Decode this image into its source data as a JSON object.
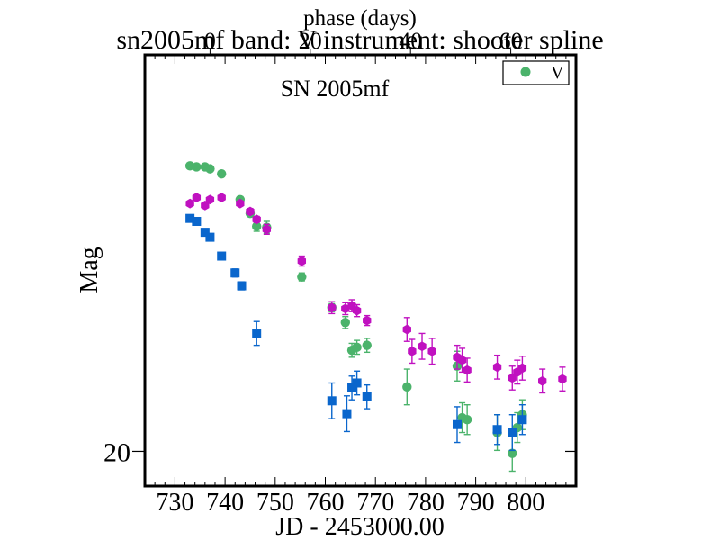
{
  "chart_data": {
    "type": "scatter",
    "title": "sn2005mf band: V instrument: shooter spline",
    "top_axis_label": "phase (days)",
    "top_tick_labels": [
      "0",
      "20",
      "40",
      "60"
    ],
    "annotation": "SN 2005mf",
    "xlabel": "JD - 2453000.00",
    "ylabel": "Mag",
    "xlim": [
      724,
      810
    ],
    "ylim": [
      20.35,
      16.0
    ],
    "x_ticks": [
      730,
      740,
      750,
      760,
      770,
      780,
      790,
      800
    ],
    "y_ticks": [
      20
    ],
    "legend": {
      "position": "top-right",
      "entries": [
        "V"
      ]
    },
    "series": [
      {
        "name": "V",
        "color": "#4bb36b",
        "marker": "circle",
        "points": [
          {
            "x": 733.0,
            "y": 17.12,
            "e": 0.02
          },
          {
            "x": 734.3,
            "y": 17.13,
            "e": 0.02
          },
          {
            "x": 736.0,
            "y": 17.13,
            "e": 0.02
          },
          {
            "x": 737.0,
            "y": 17.15,
            "e": 0.02
          },
          {
            "x": 739.3,
            "y": 17.2,
            "e": 0.02
          },
          {
            "x": 743.0,
            "y": 17.46,
            "e": 0.03
          },
          {
            "x": 745.0,
            "y": 17.6,
            "e": 0.03
          },
          {
            "x": 746.3,
            "y": 17.73,
            "e": 0.05
          },
          {
            "x": 748.3,
            "y": 17.74,
            "e": 0.06
          },
          {
            "x": 755.3,
            "y": 18.24,
            "e": 0.04
          },
          {
            "x": 761.3,
            "y": 18.55,
            "e": 0.04
          },
          {
            "x": 764.0,
            "y": 18.7,
            "e": 0.06
          },
          {
            "x": 765.3,
            "y": 18.98,
            "e": 0.07
          },
          {
            "x": 766.3,
            "y": 18.95,
            "e": 0.07
          },
          {
            "x": 768.3,
            "y": 18.93,
            "e": 0.07
          },
          {
            "x": 776.3,
            "y": 19.35,
            "e": 0.18
          },
          {
            "x": 786.3,
            "y": 19.14,
            "e": 0.15
          },
          {
            "x": 787.3,
            "y": 19.66,
            "e": 0.15
          },
          {
            "x": 788.3,
            "y": 19.68,
            "e": 0.15
          },
          {
            "x": 794.3,
            "y": 19.81,
            "e": 0.18
          },
          {
            "x": 797.3,
            "y": 20.02,
            "e": 0.18
          },
          {
            "x": 798.3,
            "y": 19.76,
            "e": 0.15
          },
          {
            "x": 799.3,
            "y": 19.63,
            "e": 0.15
          }
        ]
      },
      {
        "name": "",
        "color": "#c011c0",
        "marker": "hexagon",
        "points": [
          {
            "x": 733.0,
            "y": 17.5,
            "e": 0.02
          },
          {
            "x": 734.3,
            "y": 17.44,
            "e": 0.02
          },
          {
            "x": 736.0,
            "y": 17.52,
            "e": 0.02
          },
          {
            "x": 737.0,
            "y": 17.46,
            "e": 0.02
          },
          {
            "x": 739.3,
            "y": 17.44,
            "e": 0.02
          },
          {
            "x": 743.0,
            "y": 17.5,
            "e": 0.02
          },
          {
            "x": 745.0,
            "y": 17.58,
            "e": 0.03
          },
          {
            "x": 746.3,
            "y": 17.66,
            "e": 0.03
          },
          {
            "x": 748.3,
            "y": 17.76,
            "e": 0.05
          },
          {
            "x": 755.3,
            "y": 18.08,
            "e": 0.05
          },
          {
            "x": 761.3,
            "y": 18.55,
            "e": 0.06
          },
          {
            "x": 764.0,
            "y": 18.56,
            "e": 0.06
          },
          {
            "x": 765.3,
            "y": 18.53,
            "e": 0.06
          },
          {
            "x": 766.3,
            "y": 18.58,
            "e": 0.06
          },
          {
            "x": 768.3,
            "y": 18.68,
            "e": 0.05
          },
          {
            "x": 776.3,
            "y": 18.77,
            "e": 0.12
          },
          {
            "x": 777.3,
            "y": 18.99,
            "e": 0.12
          },
          {
            "x": 779.3,
            "y": 18.94,
            "e": 0.13
          },
          {
            "x": 781.3,
            "y": 18.99,
            "e": 0.13
          },
          {
            "x": 786.3,
            "y": 19.05,
            "e": 0.12
          },
          {
            "x": 787.3,
            "y": 19.08,
            "e": 0.12
          },
          {
            "x": 788.3,
            "y": 19.18,
            "e": 0.12
          },
          {
            "x": 794.3,
            "y": 19.15,
            "e": 0.12
          },
          {
            "x": 797.3,
            "y": 19.26,
            "e": 0.12
          },
          {
            "x": 798.3,
            "y": 19.2,
            "e": 0.12
          },
          {
            "x": 799.3,
            "y": 19.16,
            "e": 0.12
          },
          {
            "x": 803.3,
            "y": 19.29,
            "e": 0.12
          },
          {
            "x": 807.3,
            "y": 19.27,
            "e": 0.12
          }
        ]
      },
      {
        "name": "",
        "color": "#0a66cc",
        "marker": "square",
        "points": [
          {
            "x": 733.0,
            "y": 17.65,
            "e": 0.02
          },
          {
            "x": 734.3,
            "y": 17.68,
            "e": 0.02
          },
          {
            "x": 736.0,
            "y": 17.79,
            "e": 0.02
          },
          {
            "x": 737.0,
            "y": 17.84,
            "e": 0.02
          },
          {
            "x": 739.3,
            "y": 18.03,
            "e": 0.03
          },
          {
            "x": 742.0,
            "y": 18.2,
            "e": 0.04
          },
          {
            "x": 743.3,
            "y": 18.33,
            "e": 0.04
          },
          {
            "x": 746.3,
            "y": 18.81,
            "e": 0.12
          },
          {
            "x": 761.3,
            "y": 19.49,
            "e": 0.18
          },
          {
            "x": 764.3,
            "y": 19.62,
            "e": 0.18
          },
          {
            "x": 765.3,
            "y": 19.36,
            "e": 0.12
          },
          {
            "x": 766.3,
            "y": 19.31,
            "e": 0.12
          },
          {
            "x": 768.3,
            "y": 19.45,
            "e": 0.12
          },
          {
            "x": 786.3,
            "y": 19.73,
            "e": 0.18
          },
          {
            "x": 794.3,
            "y": 19.78,
            "e": 0.15
          },
          {
            "x": 797.3,
            "y": 19.81,
            "e": 0.18
          },
          {
            "x": 799.3,
            "y": 19.68,
            "e": 0.15
          }
        ]
      }
    ]
  }
}
